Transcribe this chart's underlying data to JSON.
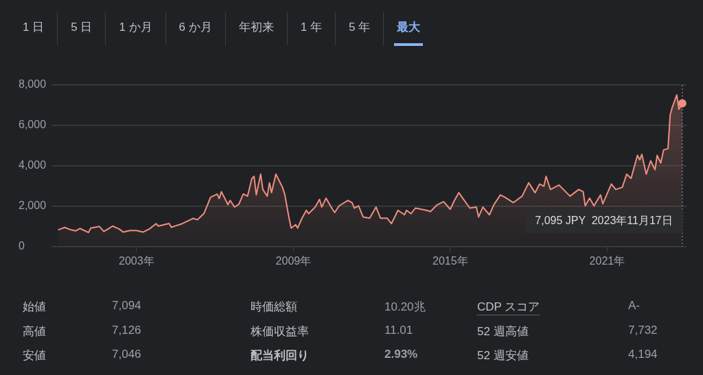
{
  "chart_data": [
    {
      "type": "area",
      "color": "#ee8f80",
      "x": [
        "2000-01",
        "2000-04",
        "2000-07",
        "2000-09",
        "2000-11",
        "2001-03",
        "2001-04",
        "2001-08",
        "2001-10",
        "2001-12",
        "2002-02",
        "2002-05",
        "2002-07",
        "2002-10",
        "2003-01",
        "2003-04",
        "2003-07",
        "2003-10",
        "2003-11",
        "2004-04",
        "2004-05",
        "2004-10",
        "2005-03",
        "2005-05",
        "2005-08",
        "2005-10",
        "2005-11",
        "2006-02",
        "2006-03",
        "2006-04",
        "2006-07",
        "2006-08",
        "2006-10",
        "2006-12",
        "2007-02",
        "2007-04",
        "2007-06",
        "2007-07",
        "2007-08",
        "2007-10",
        "2007-11",
        "2008-01",
        "2008-02",
        "2008-03",
        "2008-05",
        "2008-08",
        "2008-09",
        "2008-11",
        "2008-12",
        "2009-02",
        "2009-03",
        "2009-05",
        "2009-07",
        "2009-08",
        "2009-11",
        "2010-01",
        "2010-02",
        "2010-04",
        "2010-07",
        "2010-08",
        "2010-10",
        "2011-02",
        "2011-04",
        "2011-05",
        "2011-07",
        "2011-09",
        "2011-12",
        "2012-03",
        "2012-05",
        "2012-08",
        "2012-10",
        "2013-01",
        "2013-04",
        "2013-05",
        "2013-07",
        "2013-09",
        "2014-02",
        "2014-04",
        "2014-07",
        "2014-10",
        "2015-01",
        "2015-03",
        "2015-05",
        "2015-10",
        "2016-01",
        "2016-02",
        "2016-04",
        "2016-07",
        "2016-09",
        "2016-12",
        "2017-02",
        "2017-06",
        "2017-10",
        "2018-01",
        "2018-04",
        "2018-06",
        "2018-08",
        "2018-09",
        "2018-11",
        "2019-03",
        "2019-06",
        "2019-08",
        "2019-12",
        "2020-02",
        "2020-03",
        "2020-05",
        "2020-07",
        "2020-10",
        "2020-11",
        "2021-03",
        "2021-05",
        "2021-08",
        "2021-10",
        "2021-12",
        "2022-03",
        "2022-04",
        "2022-05",
        "2022-07",
        "2022-09",
        "2022-11",
        "2022-12",
        "2023-01-20",
        "2023-03",
        "2023-05",
        "2023-06",
        "2023-07",
        "2023-09",
        "2023-10",
        "2023-11-17"
      ],
      "values": [
        830,
        950,
        830,
        780,
        900,
        700,
        920,
        1000,
        750,
        880,
        1020,
        880,
        720,
        800,
        800,
        720,
        880,
        1140,
        1020,
        1150,
        960,
        1140,
        1400,
        1330,
        1650,
        2180,
        2450,
        2600,
        2380,
        2720,
        2080,
        2290,
        1960,
        2100,
        2610,
        2500,
        3380,
        3480,
        2560,
        3590,
        2830,
        2500,
        3160,
        2670,
        3590,
        2940,
        2610,
        1410,
        920,
        1090,
        920,
        1410,
        1800,
        1630,
        1960,
        2340,
        1960,
        2400,
        1850,
        1690,
        2020,
        2290,
        2180,
        1910,
        2020,
        1470,
        1410,
        1960,
        1410,
        1410,
        1140,
        1800,
        1580,
        1800,
        1630,
        1910,
        1800,
        1740,
        2070,
        2230,
        1850,
        2290,
        2670,
        1910,
        1960,
        1470,
        1960,
        1580,
        2070,
        2560,
        2450,
        2180,
        2500,
        3160,
        2670,
        3100,
        2990,
        3480,
        2830,
        3050,
        2720,
        2500,
        2830,
        2720,
        2020,
        2400,
        2020,
        2560,
        2120,
        3100,
        2830,
        2940,
        3590,
        3380,
        4520,
        4300,
        4570,
        3590,
        4250,
        3810,
        4520,
        4140,
        4790,
        4850,
        6530,
        6910,
        7510,
        6800,
        7095
      ],
      "xlim": [
        "1999-10",
        "2024-01-15"
      ],
      "xticks": [
        {
          "value": "2003",
          "label": "2003年"
        },
        {
          "value": "2009",
          "label": "2009年"
        },
        {
          "value": "2015",
          "label": "2015年"
        },
        {
          "value": "2021",
          "label": "2021年"
        }
      ],
      "ylim": [
        0,
        8000
      ],
      "yticks": [
        0,
        {
          "value": 2000,
          "label": "2,000"
        },
        {
          "value": 4000,
          "label": "4,000"
        },
        {
          "value": 6000,
          "label": "6,000"
        },
        {
          "value": 8000,
          "label": "8,000"
        }
      ],
      "grid": "y",
      "ref_lines": [
        {
          "axis": "x",
          "value": "2023-11-17",
          "color": "#9aa0a6",
          "line_style": "dotted"
        }
      ],
      "annotations": [
        "7,095 JPY  2023年11月17日"
      ]
    },
    {
      "type": "other",
      "annotations": [
        "1 日",
        "5 日",
        "1 か月",
        "6 か月",
        "年初来",
        "1 年",
        "5 年",
        "最大"
      ]
    },
    {
      "type": "other",
      "annotations": [
        "始値",
        "7,094",
        "時価総額",
        "10.20兆",
        "CDP スコア",
        "A-",
        "高値",
        "7,126",
        "株価収益率",
        "11.01",
        "52 週高値",
        "7,732",
        "安値",
        "7,046",
        "配当利回り",
        "2.93%",
        "52 週安値",
        "4,194"
      ]
    }
  ]
}
